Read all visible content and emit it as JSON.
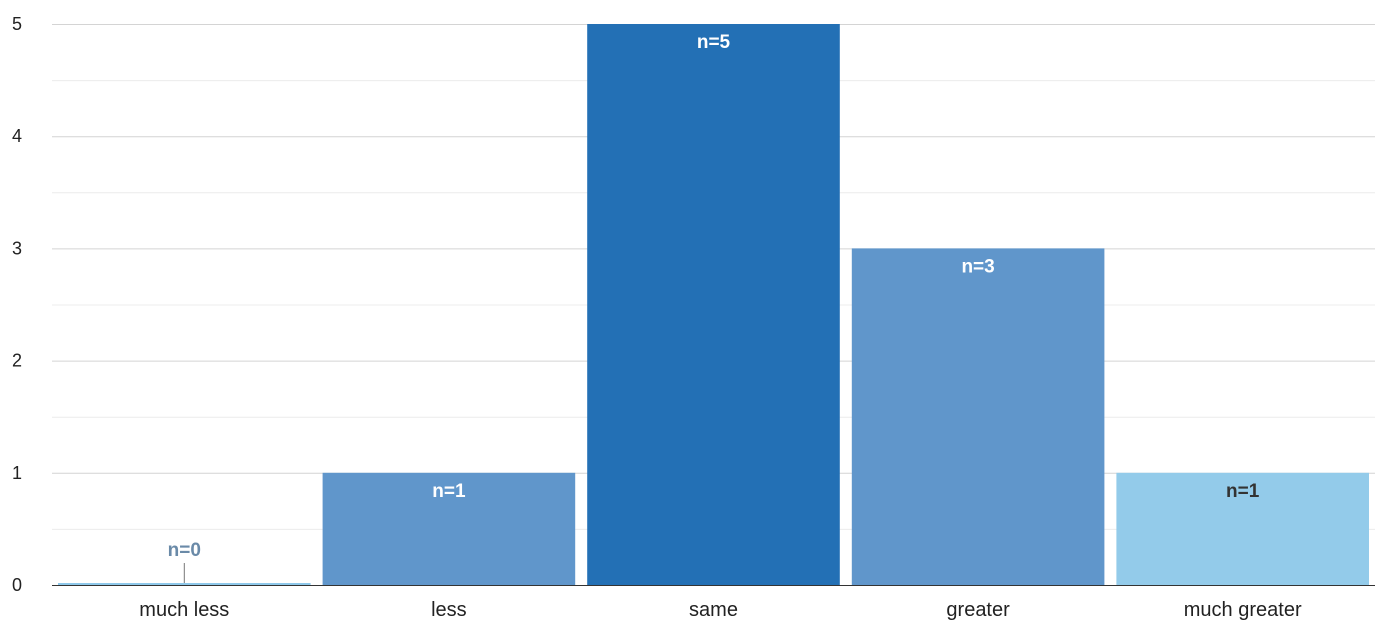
{
  "chart_data": {
    "type": "bar",
    "categories": [
      "much less",
      "less",
      "same",
      "greater",
      "much greater"
    ],
    "values": [
      0,
      1,
      5,
      3,
      1
    ],
    "data_labels": [
      "n=0",
      "n=1",
      "n=5",
      "n=3",
      "n=1"
    ],
    "bar_colors": [
      "#8ec8ea",
      "#6096cb",
      "#2370b5",
      "#6096cb",
      "#93cbea"
    ],
    "label_colors": [
      "#6a8aa8",
      "#ffffff",
      "#ffffff",
      "#ffffff",
      "#333333"
    ],
    "title": "",
    "xlabel": "",
    "ylabel": "",
    "ylim": [
      0,
      5
    ],
    "y_ticks": [
      0,
      1,
      2,
      3,
      4,
      5
    ],
    "grid": true,
    "minor_grid": true,
    "legend": "none"
  }
}
